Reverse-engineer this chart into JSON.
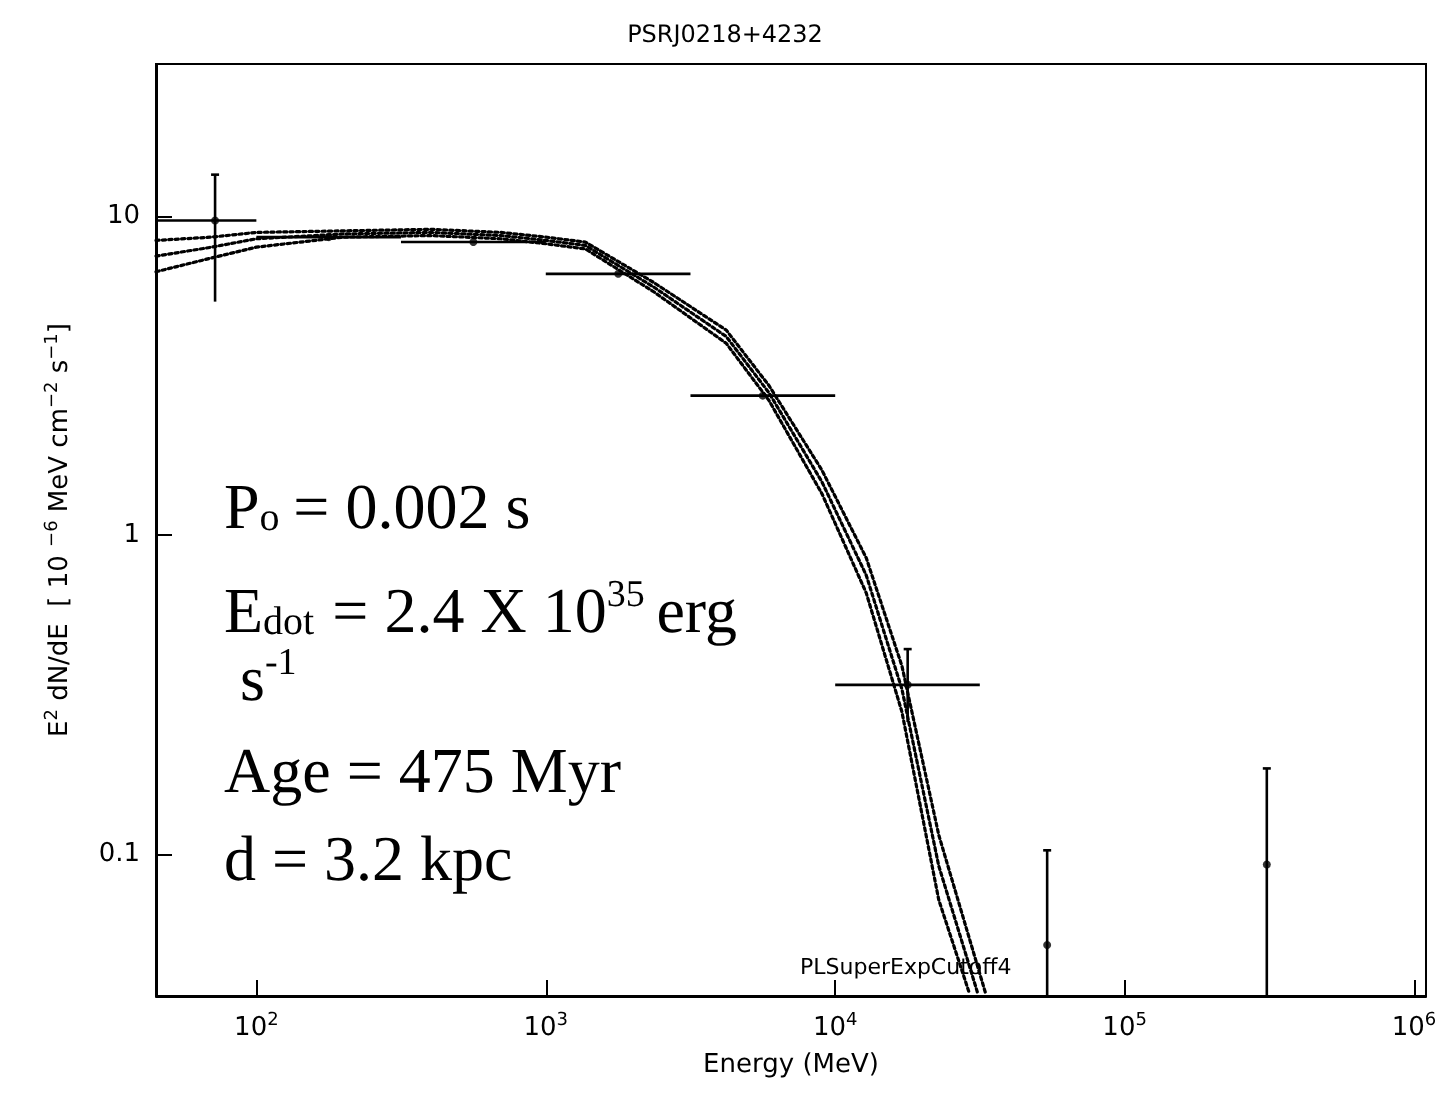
{
  "chart_data": {
    "type": "scatter",
    "title": "PSRJ0218+4232",
    "xlabel": "Energy (MeV)",
    "ylabel": "E$^{2}$ dN/dE  [ 10 $^{−6}$ MeV cm$^{−2}$ s$^{−1}$]",
    "log": "xy",
    "grid": false,
    "xlim": [
      45,
      1100000
    ],
    "ylim": [
      0.036,
      30
    ],
    "xticks": [
      {
        "value": 100,
        "label": "10$^{2}$"
      },
      {
        "value": 1000,
        "label": "10$^{3}$"
      },
      {
        "value": 10000,
        "label": "10$^{4}$"
      },
      {
        "value": 100000,
        "label": "10$^{5}$"
      },
      {
        "value": 1000000,
        "label": "10$^{6}$"
      }
    ],
    "yticks": [
      0.1,
      1,
      10
    ],
    "annotations": [
      "PLSuperExpCutoff4",
      "P$_{o}$ = 0.002 s",
      "E$_{dot}$ = 2.4 X 10$^{35}$ erg s$^{-1}$",
      "Age = 475 Myr",
      "d = 3.2 kpc"
    ],
    "series": [
      {
        "type": "line",
        "line_style": "dotted",
        "marker": "none",
        "color": "#000000",
        "x": [
          45,
          70,
          100,
          200,
          400,
          700,
          1000,
          1370,
          2360,
          4200,
          5900,
          9000,
          12800,
          17000,
          22800,
          33000
        ],
        "values": [
          8.4,
          8.6,
          8.9,
          9.0,
          9.1,
          8.9,
          8.6,
          8.3,
          6.2,
          4.4,
          2.95,
          1.6,
          0.85,
          0.39,
          0.115,
          0.037
        ]
      },
      {
        "type": "line",
        "line_style": "dotted",
        "marker": "none",
        "color": "#000000",
        "x": [
          45,
          70,
          100,
          200,
          400,
          700,
          1000,
          1370,
          2360,
          4200,
          5900,
          9000,
          12800,
          17000,
          22800,
          31000
        ],
        "values": [
          7.5,
          8.0,
          8.5,
          8.8,
          8.9,
          8.7,
          8.4,
          8.1,
          6.0,
          4.2,
          2.8,
          1.47,
          0.75,
          0.33,
          0.092,
          0.037
        ]
      },
      {
        "type": "line",
        "line_style": "dotted",
        "marker": "none",
        "color": "#000000",
        "x": [
          45,
          70,
          100,
          200,
          400,
          700,
          1000,
          1370,
          2360,
          4200,
          5900,
          9000,
          12800,
          17000,
          22800,
          29000
        ],
        "values": [
          6.7,
          7.4,
          8.0,
          8.6,
          8.7,
          8.5,
          8.2,
          7.9,
          5.8,
          4.0,
          2.65,
          1.35,
          0.66,
          0.28,
          0.072,
          0.037
        ]
      },
      {
        "color": "#000000",
        "x": [
          72,
          178,
          562,
          1780,
          5620,
          17800,
          54000,
          310000
        ],
        "values": [
          9.7,
          8.6,
          8.3,
          6.6,
          2.74,
          0.34,
          0.052,
          0.093
        ],
        "errors": [
          [
            5.4,
            13.5
          ],
          null,
          null,
          null,
          null,
          [
            0.26,
            0.44
          ],
          [
            0.036,
            0.103
          ],
          [
            0.036,
            0.186
          ]
        ],
        "xerrors": [
          [
            45,
            100
          ],
          [
            100,
            316
          ],
          [
            316,
            1000
          ],
          [
            1000,
            3162
          ],
          [
            3162,
            10000
          ],
          [
            10000,
            31600
          ],
          null,
          null
        ]
      }
    ]
  }
}
